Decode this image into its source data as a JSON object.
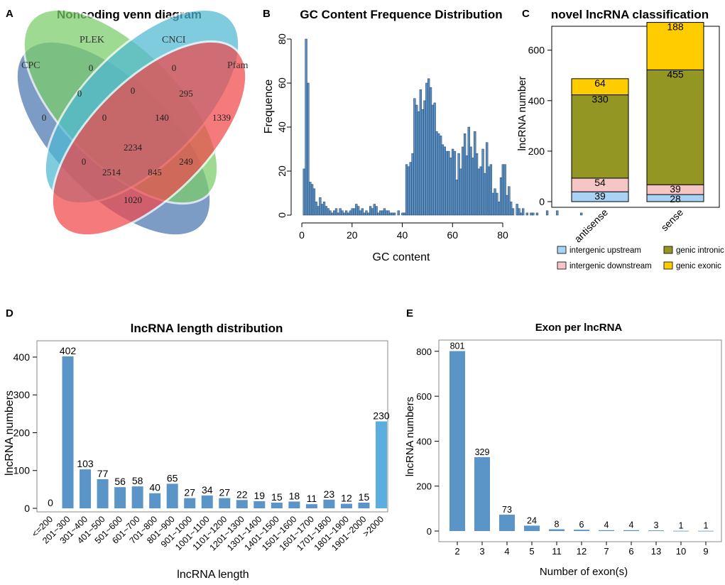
{
  "panels": {
    "A": {
      "letter": "A",
      "title": "Noncoding venn diagram"
    },
    "B": {
      "letter": "B",
      "title": "GC Content Frequence Distribution"
    },
    "C": {
      "letter": "C",
      "title": "novel lncRNA classification"
    },
    "D": {
      "letter": "D",
      "title": "lncRNA length distribution"
    },
    "E": {
      "letter": "E",
      "title": "Exon per lncRNA"
    }
  },
  "colors": {
    "venn_cpc": "#4a76b0",
    "venn_plek": "#7bcd6a",
    "venn_cnci": "#4fb9d4",
    "venn_pfam": "#f0484a",
    "hist": "#5b8fc2",
    "c_upstream": "#a9d3f5",
    "c_downstream": "#f6c6c6",
    "c_intronic": "#949623",
    "c_exonic": "#ffcc00",
    "d_bar": "#5b95c7",
    "d_last": "#5aaee0",
    "e_bar": "#5b95c7"
  },
  "chart_data": [
    {
      "type": "venn",
      "title": "Noncoding venn diagram",
      "sets": [
        "CPC",
        "PLEK",
        "CNCI",
        "Pfam"
      ],
      "regions": [
        {
          "sets": [
            "CPC"
          ],
          "value": "0"
        },
        {
          "sets": [
            "PLEK"
          ],
          "value": "0"
        },
        {
          "sets": [
            "CNCI"
          ],
          "value": "0"
        },
        {
          "sets": [
            "Pfam"
          ],
          "value": "1339"
        },
        {
          "sets": [
            "CPC",
            "PLEK"
          ],
          "value": "0"
        },
        {
          "sets": [
            "PLEK",
            "CNCI"
          ],
          "value": "0"
        },
        {
          "sets": [
            "CNCI",
            "Pfam"
          ],
          "value": "295"
        },
        {
          "sets": [
            "CPC",
            "PLEK",
            "CNCI"
          ],
          "value": "0"
        },
        {
          "sets": [
            "PLEK",
            "CNCI",
            "Pfam"
          ],
          "value": "140"
        },
        {
          "sets": [
            "CPC",
            "CNCI"
          ],
          "value": "0"
        },
        {
          "sets": [
            "CPC",
            "PLEK",
            "CNCI",
            "Pfam"
          ],
          "value": "2234"
        },
        {
          "sets": [
            "PLEK",
            "Pfam"
          ],
          "value": "249"
        },
        {
          "sets": [
            "CPC",
            "CNCI",
            "Pfam"
          ],
          "value": "2514"
        },
        {
          "sets": [
            "CPC",
            "PLEK",
            "Pfam"
          ],
          "value": "845"
        },
        {
          "sets": [
            "CPC",
            "Pfam"
          ],
          "value": "1020"
        }
      ]
    },
    {
      "type": "bar",
      "subtype": "histogram",
      "title": "GC Content Frequence Distribution",
      "xlabel": "GC content",
      "ylabel": "Frequence",
      "xlim": [
        -2,
        80
      ],
      "ylim": [
        0,
        80
      ],
      "xticks": [
        "0",
        "20",
        "40",
        "60",
        "80"
      ],
      "yticks": [
        "0",
        "20",
        "40",
        "60",
        "80"
      ],
      "bin_start": 0.5,
      "bin_width": 0.8,
      "values": [
        21,
        80,
        60,
        15,
        14,
        12,
        6,
        4,
        8,
        5,
        6,
        4,
        3,
        2,
        1,
        2,
        3,
        1,
        3,
        2,
        1,
        2,
        1,
        2,
        3,
        3,
        5,
        4,
        2,
        3,
        1,
        2,
        1,
        4,
        3,
        5,
        4,
        1,
        2,
        2,
        3,
        2,
        2,
        1,
        1,
        1,
        0,
        2,
        0,
        1,
        1,
        23,
        22,
        24,
        28,
        53,
        50,
        47,
        57,
        48,
        52,
        60,
        62,
        58,
        50,
        51,
        38,
        37,
        36,
        32,
        31,
        29,
        29,
        26,
        30,
        29,
        16,
        28,
        21,
        31,
        37,
        27,
        40,
        31,
        26,
        38,
        28,
        21,
        22,
        30,
        19,
        33,
        22,
        23,
        10,
        12,
        10,
        6,
        17,
        23,
        23,
        9,
        13,
        6,
        3,
        0,
        5,
        3,
        1,
        3,
        0,
        1,
        0,
        1,
        1,
        0,
        1,
        0,
        0,
        0,
        0,
        2,
        0,
        0,
        0,
        0,
        2,
        0,
        0,
        0,
        0,
        0,
        0,
        0,
        0,
        0,
        0,
        0,
        1
      ]
    },
    {
      "type": "bar",
      "subtype": "stacked",
      "title": "novel lncRNA classification",
      "xlabel": "",
      "ylabel": "lncRNA number",
      "ylim": [
        0,
        720
      ],
      "yticks": [
        "0",
        "200",
        "400",
        "600"
      ],
      "categories": [
        "antisense",
        "sense"
      ],
      "series": [
        {
          "name": "intergenic upstream",
          "values": [
            39,
            28
          ],
          "labels": [
            "39",
            "28"
          ]
        },
        {
          "name": "intergenic downstream",
          "values": [
            54,
            39
          ],
          "labels": [
            "54",
            "39"
          ]
        },
        {
          "name": "genic intronic",
          "values": [
            330,
            455
          ],
          "labels": [
            "330",
            "455"
          ]
        },
        {
          "name": "genic exonic",
          "values": [
            64,
            188
          ],
          "labels": [
            "64",
            "188"
          ]
        }
      ],
      "legend": [
        "intergenic upstream",
        "genic intronic",
        "intergenic downstream",
        "genic exonic"
      ]
    },
    {
      "type": "bar",
      "title": "lncRNA length distribution",
      "xlabel": "lncRNA length",
      "ylabel": "lncRNA numbers",
      "ylim": [
        0,
        430
      ],
      "yticks": [
        "0",
        "100",
        "200",
        "300",
        "400"
      ],
      "categories": [
        "<=200",
        "201~300",
        "301~400",
        "401~500",
        "501~600",
        "601~700",
        "701~800",
        "801~900",
        "901~1000",
        "1001~1100",
        "1101~1200",
        "1201~1300",
        "1301~1400",
        "1401~1500",
        "1501~1600",
        "1601~1700",
        "1701~1800",
        "1801~1900",
        "1901~2000",
        ">2000"
      ],
      "values": [
        0,
        402,
        103,
        77,
        56,
        58,
        40,
        65,
        27,
        34,
        27,
        22,
        19,
        15,
        18,
        11,
        23,
        12,
        15,
        230
      ],
      "labels": [
        "0",
        "402",
        "103",
        "77",
        "56",
        "58",
        "40",
        "65",
        "27",
        "34",
        "27",
        "22",
        "19",
        "15",
        "18",
        "11",
        "23",
        "12",
        "15",
        "230"
      ]
    },
    {
      "type": "bar",
      "title": "Exon per lncRNA",
      "xlabel": "Number of exon(s)",
      "ylabel": "lncRNA numbers",
      "ylim": [
        0,
        850
      ],
      "yticks": [
        "0",
        "200",
        "400",
        "600",
        "800"
      ],
      "categories": [
        "2",
        "3",
        "4",
        "5",
        "11",
        "12",
        "7",
        "6",
        "13",
        "10",
        "9"
      ],
      "values": [
        801,
        329,
        73,
        24,
        8,
        6,
        4,
        4,
        3,
        1,
        1
      ],
      "labels": [
        "801",
        "329",
        "73",
        "24",
        "8",
        "6",
        "4",
        "4",
        "3",
        "1",
        "1"
      ]
    }
  ]
}
